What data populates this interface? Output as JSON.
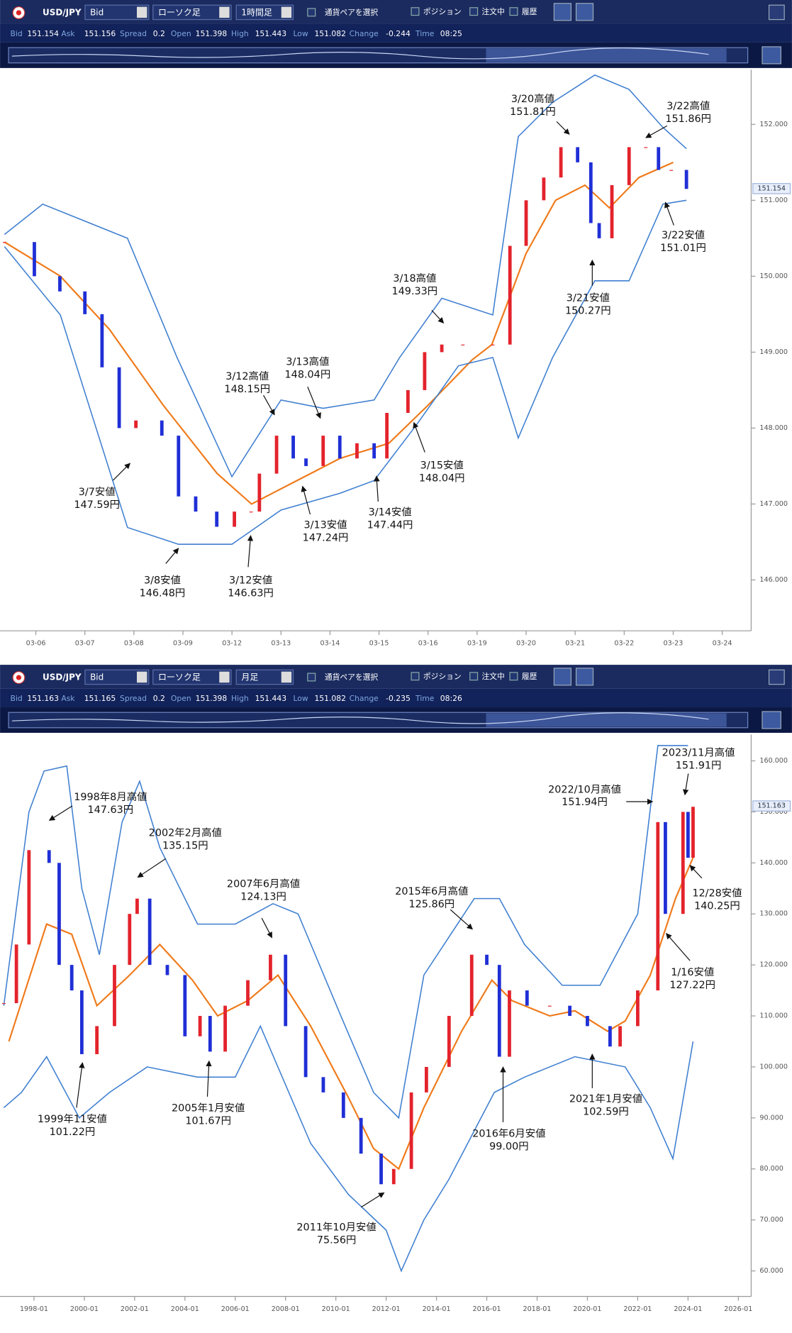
{
  "toolbars": [
    {
      "pair": "USD/JPY",
      "price_type": "Bid",
      "chart_type": "ローソク足",
      "timeframe": "1時間足",
      "pair_select": "通貨ペアを選択",
      "checkboxes": [
        "ポジション",
        "注文中",
        "履歴"
      ],
      "quote": [
        {
          "label": "Bid",
          "value": 151.154
        },
        {
          "label": "Ask",
          "value": 151.156
        },
        {
          "label": "Spread",
          "value": 0.2
        },
        {
          "label": "Open",
          "value": 151.398
        },
        {
          "label": "High",
          "value": 151.443
        },
        {
          "label": "Low",
          "value": 151.082
        },
        {
          "label": "Change",
          "value": -0.244
        },
        {
          "label": "Time",
          "value": "08:25"
        }
      ]
    },
    {
      "pair": "USD/JPY",
      "price_type": "Bid",
      "chart_type": "ローソク足",
      "timeframe": "月足",
      "pair_select": "通貨ペアを選択",
      "checkboxes": [
        "ポジション",
        "注文中",
        "履歴"
      ],
      "quote": [
        {
          "label": "Bid",
          "value": 151.163
        },
        {
          "label": "Ask",
          "value": 151.165
        },
        {
          "label": "Spread",
          "value": 0.2
        },
        {
          "label": "Open",
          "value": 151.398
        },
        {
          "label": "High",
          "value": 151.443
        },
        {
          "label": "Low",
          "value": 151.082
        },
        {
          "label": "Change",
          "value": -0.235
        },
        {
          "label": "Time",
          "value": "08:26"
        }
      ]
    }
  ],
  "chart_data": [
    {
      "type": "candlestick",
      "xlim": [
        -0.73,
        14.59
      ],
      "ylim": [
        145.33,
        152.72
      ],
      "xticks": [
        {
          "value": 0,
          "label": "03-06"
        },
        {
          "value": 1,
          "label": "03-07"
        },
        {
          "value": 2,
          "label": "03-08"
        },
        {
          "value": 3,
          "label": "03-09"
        },
        {
          "value": 4,
          "label": "03-12"
        },
        {
          "value": 5,
          "label": "03-13"
        },
        {
          "value": 6,
          "label": "03-14"
        },
        {
          "value": 7,
          "label": "03-15"
        },
        {
          "value": 8,
          "label": "03-16"
        },
        {
          "value": 9,
          "label": "03-19"
        },
        {
          "value": 10,
          "label": "03-20"
        },
        {
          "value": 11,
          "label": "03-21"
        },
        {
          "value": 12,
          "label": "03-22"
        },
        {
          "value": 13,
          "label": "03-23"
        },
        {
          "value": 14,
          "label": "03-24"
        }
      ],
      "yticks": [
        {
          "value": 146,
          "label": "146.000"
        },
        {
          "value": 147,
          "label": "147.000"
        },
        {
          "value": 148,
          "label": "148.000"
        },
        {
          "value": 149,
          "label": "149.000"
        },
        {
          "value": 150,
          "label": "150.000"
        },
        {
          "value": 151,
          "label": "151.000"
        },
        {
          "value": 152,
          "label": "152.000"
        }
      ],
      "current_price": 151.154,
      "x": [
        -0.64,
        -0.03,
        0.49,
        1.0,
        1.35,
        1.7,
        2.04,
        2.57,
        2.91,
        3.26,
        3.69,
        4.05,
        4.39,
        4.56,
        4.91,
        5.25,
        5.51,
        5.86,
        6.2,
        6.55,
        6.9,
        7.16,
        7.59,
        7.93,
        8.28,
        8.71,
        9.32,
        9.67,
        10.0,
        10.36,
        10.71,
        11.05,
        11.32,
        11.49,
        11.75,
        12.1,
        12.44,
        12.7,
        12.96,
        13.27
      ],
      "values": [
        150.45,
        150.0,
        149.8,
        149.5,
        148.8,
        148.0,
        148.1,
        147.9,
        147.1,
        146.9,
        146.7,
        146.9,
        146.9,
        147.4,
        147.9,
        147.6,
        147.5,
        147.9,
        147.6,
        147.8,
        147.6,
        148.2,
        148.5,
        149.0,
        149.1,
        149.1,
        149.1,
        150.4,
        151.0,
        151.3,
        151.7,
        151.5,
        150.7,
        150.5,
        151.2,
        151.7,
        151.7,
        151.4,
        151.4,
        151.15
      ],
      "up_color": "#e3232c",
      "down_color": "#1f2fd6",
      "lines": [
        {
          "color": "#f07a1a",
          "x": [
            -0.64,
            0.5,
            1.5,
            2.6,
            3.7,
            4.4,
            5.3,
            6.2,
            7.2,
            8.0,
            8.9,
            9.3,
            10.0,
            10.6,
            11.2,
            11.7,
            12.3,
            13.0
          ],
          "values": [
            150.45,
            150.0,
            149.3,
            148.3,
            147.4,
            147.0,
            147.3,
            147.6,
            147.8,
            148.3,
            148.9,
            149.1,
            150.3,
            151.0,
            151.2,
            150.9,
            151.3,
            151.5
          ]
        },
        {
          "color": "#3f7fd0",
          "x": [
            -0.64,
            0.14,
            1.87,
            2.88,
            4.0,
            5.0,
            5.86,
            6.9,
            7.42,
            8.28,
            9.32,
            9.84,
            10.54,
            11.4,
            12.1,
            12.79,
            13.27
          ],
          "values": [
            150.55,
            150.95,
            150.5,
            148.93,
            147.36,
            148.37,
            148.26,
            148.37,
            148.93,
            149.71,
            149.49,
            151.84,
            152.29,
            152.65,
            152.46,
            151.96,
            151.68
          ]
        },
        {
          "color": "#3f7fd0",
          "x": [
            -0.64,
            0.5,
            1.87,
            2.91,
            4.0,
            5.0,
            6.2,
            6.9,
            7.76,
            8.62,
            9.32,
            9.84,
            10.54,
            11.4,
            12.1,
            12.79,
            13.27
          ],
          "values": [
            150.39,
            149.49,
            146.69,
            146.47,
            146.47,
            146.92,
            147.14,
            147.31,
            148.04,
            148.82,
            148.93,
            147.87,
            148.93,
            149.94,
            149.94,
            150.95,
            151.0
          ]
        }
      ],
      "annotations": [
        [
          "3/20高値",
          "151.81円"
        ],
        [
          "3/22高値",
          "151.86円"
        ],
        [
          "3/22安値",
          "151.01円"
        ],
        [
          "3/21安値",
          "150.27円"
        ],
        [
          "3/18高値",
          "149.33円"
        ],
        [
          "3/13高値",
          "148.04円"
        ],
        [
          "3/12高値",
          "148.15円"
        ],
        [
          "3/15安値",
          "148.04円"
        ],
        [
          "3/14安値",
          "147.44円"
        ],
        [
          "3/13安値",
          "147.24円"
        ],
        [
          "3/7安値",
          "147.59円"
        ],
        [
          "3/8安値",
          "146.48円"
        ],
        [
          "3/12安値",
          "146.63円"
        ]
      ]
    },
    {
      "type": "candlestick",
      "xlim": [
        1996.65,
        2026.51
      ],
      "ylim": [
        55,
        165.17
      ],
      "xticks": [
        {
          "value": 1998,
          "label": "1998-01"
        },
        {
          "value": 2000,
          "label": "2000-01"
        },
        {
          "value": 2002,
          "label": "2002-01"
        },
        {
          "value": 2004,
          "label": "2004-01"
        },
        {
          "value": 2006,
          "label": "2006-01"
        },
        {
          "value": 2008,
          "label": "2008-01"
        },
        {
          "value": 2010,
          "label": "2010-01"
        },
        {
          "value": 2012,
          "label": "2012-01"
        },
        {
          "value": 2014,
          "label": "2014-01"
        },
        {
          "value": 2016,
          "label": "2016-01"
        },
        {
          "value": 2018,
          "label": "2018-01"
        },
        {
          "value": 2020,
          "label": "2020-01"
        },
        {
          "value": 2022,
          "label": "2022-01"
        },
        {
          "value": 2024,
          "label": "2024-01"
        },
        {
          "value": 2026,
          "label": "2026-01"
        }
      ],
      "yticks": [
        {
          "value": 60,
          "label": "60.000"
        },
        {
          "value": 70,
          "label": "70.000"
        },
        {
          "value": 80,
          "label": "80.000"
        },
        {
          "value": 90,
          "label": "90.000"
        },
        {
          "value": 100,
          "label": "100.000"
        },
        {
          "value": 110,
          "label": "110.000"
        },
        {
          "value": 120,
          "label": "120.000"
        },
        {
          "value": 130,
          "label": "130.000"
        },
        {
          "value": 140,
          "label": "140.000"
        },
        {
          "value": 150,
          "label": "150.000"
        },
        {
          "value": 160,
          "label": "160.000"
        }
      ],
      "current_price": 151.163,
      "x": [
        1996.8,
        1997.3,
        1997.8,
        1998.6,
        1999.0,
        1999.5,
        1999.9,
        2000.5,
        2001.2,
        2001.8,
        2002.1,
        2002.6,
        2003.3,
        2004.0,
        2004.6,
        2005.0,
        2005.6,
        2006.5,
        2007.4,
        2008.0,
        2008.8,
        2009.5,
        2010.3,
        2011.0,
        2011.8,
        2012.3,
        2013.0,
        2013.6,
        2014.5,
        2015.4,
        2016.0,
        2016.5,
        2016.9,
        2017.6,
        2018.5,
        2019.3,
        2020.0,
        2020.9,
        2021.3,
        2022.0,
        2022.8,
        2023.1,
        2023.8,
        2024.0,
        2024.2
      ],
      "values": [
        112.5,
        124,
        142.5,
        140,
        120,
        115,
        102.5,
        108,
        120,
        130,
        133,
        120,
        118,
        106,
        110,
        103,
        112,
        117,
        122,
        108,
        98,
        95,
        90,
        83,
        77,
        80,
        95,
        100,
        110,
        122,
        120,
        102,
        115,
        112,
        112,
        110,
        108,
        104,
        108,
        115,
        148,
        130,
        150,
        141,
        151
      ],
      "up_color": "#e3232c",
      "down_color": "#1f2fd6",
      "lines": [
        {
          "color": "#f07a1a",
          "x": [
            1997.0,
            1998.5,
            1999.5,
            2000.5,
            2001.8,
            2003.0,
            2004.3,
            2005.3,
            2006.5,
            2007.7,
            2009.0,
            2010.5,
            2011.5,
            2012.5,
            2013.5,
            2015.0,
            2016.2,
            2017.0,
            2018.5,
            2019.5,
            2020.8,
            2021.5,
            2022.5,
            2023.5,
            2024.2
          ],
          "values": [
            105,
            128,
            126,
            112,
            118,
            124,
            117,
            110,
            113,
            118,
            108,
            94,
            84,
            80,
            92,
            107,
            117,
            113,
            110,
            111,
            107,
            109,
            118,
            133,
            141
          ]
        },
        {
          "color": "#3f7fd0",
          "x": [
            1996.8,
            1997.8,
            1998.4,
            1999.3,
            1999.9,
            2000.6,
            2001.5,
            2002.2,
            2003.0,
            2004.5,
            2006.0,
            2007.5,
            2008.5,
            2010.2,
            2011.5,
            2012.5,
            2013.5,
            2015.5,
            2016.5,
            2017.5,
            2019.0,
            2020.5,
            2022.0,
            2022.8,
            2024.0
          ],
          "values": [
            112,
            150,
            158,
            159,
            135,
            122,
            148,
            156,
            143,
            128,
            128,
            132,
            130,
            110,
            95,
            90,
            118,
            133,
            133,
            124,
            116,
            116,
            130,
            163,
            163
          ]
        },
        {
          "color": "#3f7fd0",
          "x": [
            1996.8,
            1997.5,
            1998.5,
            1999.8,
            2001.0,
            2002.5,
            2004.5,
            2006.0,
            2007.0,
            2009.0,
            2010.5,
            2012.0,
            2012.6,
            2013.5,
            2014.5,
            2016.3,
            2017.5,
            2019.5,
            2021.5,
            2022.5,
            2023.4,
            2024.2
          ],
          "values": [
            92,
            95,
            102,
            90,
            95,
            100,
            98,
            98,
            108,
            85,
            75,
            68,
            60,
            70,
            78,
            95,
            98,
            102,
            100,
            92,
            82,
            105
          ]
        }
      ],
      "annotations": [
        [
          "1998年8月高値",
          "147.63円"
        ],
        [
          "2002年2月高値",
          "135.15円"
        ],
        [
          "2007年6月高値",
          "124.13円"
        ],
        [
          "2015年6月高値",
          "125.86円"
        ],
        [
          "2022/10月高値",
          "151.94円"
        ],
        [
          "2023/11月高値",
          "151.91円"
        ],
        [
          "12/28安値",
          "140.25円"
        ],
        [
          "1/16安値",
          "127.22円"
        ],
        [
          "2021年1月安値",
          "102.59円"
        ],
        [
          "2016年6月安値",
          "99.00円"
        ],
        [
          "2005年1月安値",
          "101.67円"
        ],
        [
          "1999年11安値",
          "101.22円"
        ],
        [
          "2011年10月安値",
          "75.56円"
        ]
      ]
    }
  ]
}
